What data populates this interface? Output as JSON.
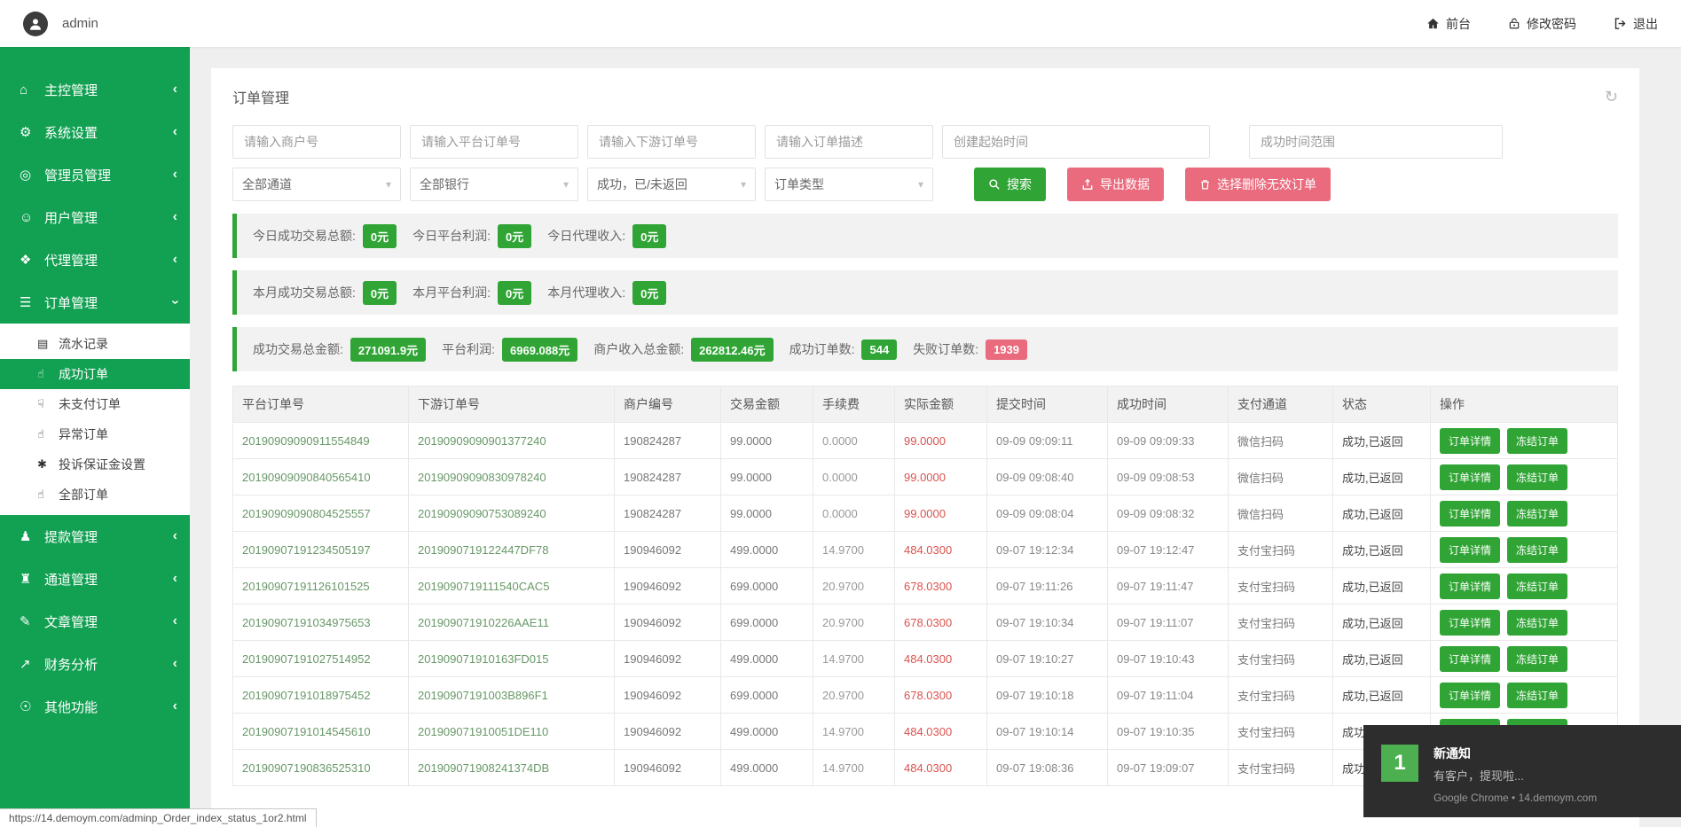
{
  "colors": {
    "sidebar_green": "#12A052",
    "button_green": "#30A535",
    "pink": "#EA6B7D",
    "red_text": "#D9534F"
  },
  "topbar": {
    "username": "admin",
    "links": [
      {
        "icon": "home-icon",
        "label": "前台"
      },
      {
        "icon": "lock-icon",
        "label": "修改密码"
      },
      {
        "icon": "logout-icon",
        "label": "退出"
      }
    ]
  },
  "sidebar": {
    "items": [
      {
        "icon": "home-icon",
        "label": "主控管理",
        "state": "collapsed"
      },
      {
        "icon": "cogs-icon",
        "label": "系统设置",
        "state": "collapsed"
      },
      {
        "icon": "admin-icon",
        "label": "管理员管理",
        "state": "collapsed"
      },
      {
        "icon": "users-icon",
        "label": "用户管理",
        "state": "collapsed"
      },
      {
        "icon": "agent-icon",
        "label": "代理管理",
        "state": "collapsed"
      },
      {
        "icon": "orders-icon",
        "label": "订单管理",
        "state": "expanded",
        "children": [
          {
            "icon": "records-icon",
            "label": "流水记录",
            "active": false
          },
          {
            "icon": "thumbs-up-icon",
            "label": "成功订单",
            "active": true
          },
          {
            "icon": "thumbs-down-icon",
            "label": "未支付订单",
            "active": false
          },
          {
            "icon": "thumbs-up-outline-icon",
            "label": "异常订单",
            "active": false
          },
          {
            "icon": "asterisk-icon",
            "label": "投诉保证金设置",
            "active": false
          },
          {
            "icon": "thumbs-up-icon",
            "label": "全部订单",
            "active": false
          }
        ]
      },
      {
        "icon": "withdraw-icon",
        "label": "提款管理",
        "state": "collapsed"
      },
      {
        "icon": "bank-icon",
        "label": "通道管理",
        "state": "collapsed"
      },
      {
        "icon": "article-icon",
        "label": "文章管理",
        "state": "collapsed"
      },
      {
        "icon": "finance-icon",
        "label": "财务分析",
        "state": "collapsed"
      },
      {
        "icon": "other-icon",
        "label": "其他功能",
        "state": "collapsed"
      }
    ]
  },
  "page": {
    "title": "订单管理"
  },
  "filters": {
    "inputs": [
      "请输入商户号",
      "请输入平台订单号",
      "请输入下游订单号",
      "请输入订单描述",
      "创建起始时间",
      "成功时间范围"
    ],
    "selects": [
      "全部通道",
      "全部银行",
      "成功，已/未返回",
      "订单类型"
    ],
    "buttons": {
      "search": "搜索",
      "export": "导出数据",
      "delete_invalid": "选择删除无效订单"
    }
  },
  "stats": [
    {
      "items": [
        {
          "label": "今日成功交易总额:",
          "value": "0元",
          "color": "green"
        },
        {
          "label": "今日平台利润:",
          "value": "0元",
          "color": "green"
        },
        {
          "label": "今日代理收入:",
          "value": "0元",
          "color": "green"
        }
      ]
    },
    {
      "items": [
        {
          "label": "本月成功交易总额:",
          "value": "0元",
          "color": "green"
        },
        {
          "label": "本月平台利润:",
          "value": "0元",
          "color": "green"
        },
        {
          "label": "本月代理收入:",
          "value": "0元",
          "color": "green"
        }
      ]
    },
    {
      "items": [
        {
          "label": "成功交易总金额:",
          "value": "271091.9元",
          "color": "green"
        },
        {
          "label": "平台利润:",
          "value": "6969.088元",
          "color": "green"
        },
        {
          "label": "商户收入总金额:",
          "value": "262812.46元",
          "color": "green"
        },
        {
          "label": "成功订单数:",
          "value": "544",
          "color": "green"
        },
        {
          "label": "失败订单数:",
          "value": "1939",
          "color": "red"
        }
      ]
    }
  ],
  "table": {
    "headers": [
      "平台订单号",
      "下游订单号",
      "商户编号",
      "交易金额",
      "手续费",
      "实际金额",
      "提交时间",
      "成功时间",
      "支付通道",
      "状态",
      "操作"
    ],
    "action_labels": [
      "订单详情",
      "冻结订单"
    ],
    "rows": [
      {
        "platform_order_no": "20190909090911554849",
        "downstream_order_no": "20190909090901377240",
        "merchant_id": "190824287",
        "amount": "99.0000",
        "fee": "0.0000",
        "actual_amount": "99.0000",
        "submit_time": "09-09 09:09:11",
        "success_time": "09-09 09:09:33",
        "channel": "微信扫码",
        "status": "成功,已返回"
      },
      {
        "platform_order_no": "20190909090840565410",
        "downstream_order_no": "20190909090830978240",
        "merchant_id": "190824287",
        "amount": "99.0000",
        "fee": "0.0000",
        "actual_amount": "99.0000",
        "submit_time": "09-09 09:08:40",
        "success_time": "09-09 09:08:53",
        "channel": "微信扫码",
        "status": "成功,已返回"
      },
      {
        "platform_order_no": "20190909090804525557",
        "downstream_order_no": "20190909090753089240",
        "merchant_id": "190824287",
        "amount": "99.0000",
        "fee": "0.0000",
        "actual_amount": "99.0000",
        "submit_time": "09-09 09:08:04",
        "success_time": "09-09 09:08:32",
        "channel": "微信扫码",
        "status": "成功,已返回"
      },
      {
        "platform_order_no": "20190907191234505197",
        "downstream_order_no": "2019090719122447DF78",
        "merchant_id": "190946092",
        "amount": "499.0000",
        "fee": "14.9700",
        "actual_amount": "484.0300",
        "submit_time": "09-07 19:12:34",
        "success_time": "09-07 19:12:47",
        "channel": "支付宝扫码",
        "status": "成功,已返回"
      },
      {
        "platform_order_no": "20190907191126101525",
        "downstream_order_no": "2019090719111540CAC5",
        "merchant_id": "190946092",
        "amount": "699.0000",
        "fee": "20.9700",
        "actual_amount": "678.0300",
        "submit_time": "09-07 19:11:26",
        "success_time": "09-07 19:11:47",
        "channel": "支付宝扫码",
        "status": "成功,已返回"
      },
      {
        "platform_order_no": "20190907191034975653",
        "downstream_order_no": "201909071910226AAE11",
        "merchant_id": "190946092",
        "amount": "699.0000",
        "fee": "20.9700",
        "actual_amount": "678.0300",
        "submit_time": "09-07 19:10:34",
        "success_time": "09-07 19:11:07",
        "channel": "支付宝扫码",
        "status": "成功,已返回"
      },
      {
        "platform_order_no": "20190907191027514952",
        "downstream_order_no": "201909071910163FD015",
        "merchant_id": "190946092",
        "amount": "499.0000",
        "fee": "14.9700",
        "actual_amount": "484.0300",
        "submit_time": "09-07 19:10:27",
        "success_time": "09-07 19:10:43",
        "channel": "支付宝扫码",
        "status": "成功,已返回"
      },
      {
        "platform_order_no": "20190907191018975452",
        "downstream_order_no": "20190907191003B896F1",
        "merchant_id": "190946092",
        "amount": "699.0000",
        "fee": "20.9700",
        "actual_amount": "678.0300",
        "submit_time": "09-07 19:10:18",
        "success_time": "09-07 19:11:04",
        "channel": "支付宝扫码",
        "status": "成功,已返回"
      },
      {
        "platform_order_no": "20190907191014545610",
        "downstream_order_no": "201909071910051DE110",
        "merchant_id": "190946092",
        "amount": "499.0000",
        "fee": "14.9700",
        "actual_amount": "484.0300",
        "submit_time": "09-07 19:10:14",
        "success_time": "09-07 19:10:35",
        "channel": "支付宝扫码",
        "status": "成功,已返回"
      },
      {
        "platform_order_no": "20190907190836525310",
        "downstream_order_no": "201909071908241374DB",
        "merchant_id": "190946092",
        "amount": "499.0000",
        "fee": "14.9700",
        "actual_amount": "484.0300",
        "submit_time": "09-07 19:08:36",
        "success_time": "09-07 19:09:07",
        "channel": "支付宝扫码",
        "status": "成功,已返回"
      }
    ]
  },
  "notification": {
    "count": "1",
    "title": "新通知",
    "body": "有客户，提现啦...",
    "source": "Google Chrome • 14.demoym.com"
  },
  "statusbar": {
    "url": "https://14.demoym.com/adminp_Order_index_status_1or2.html"
  }
}
